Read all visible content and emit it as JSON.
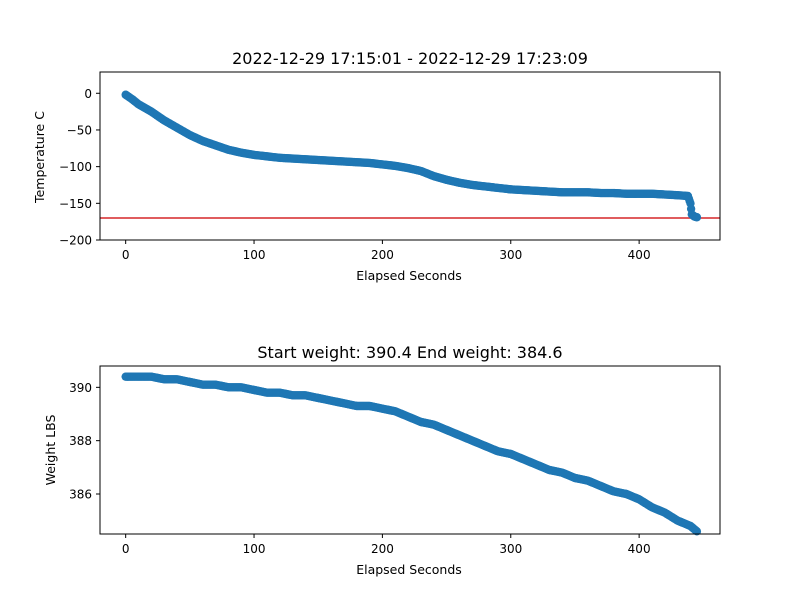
{
  "colors": {
    "marker": "#1f77b4",
    "threshold_line": "#d62728",
    "axis": "#000000",
    "background": "#ffffff"
  },
  "chart_data": [
    {
      "type": "scatter",
      "title": "2022-12-29 17:15:01 - 2022-12-29 17:23:09",
      "xlabel": "Elapsed Seconds",
      "ylabel": "Temperature C",
      "xlim": [
        -20,
        463
      ],
      "ylim": [
        -200,
        29
      ],
      "xticks": [
        0,
        100,
        200,
        300,
        400
      ],
      "xtick_labels": [
        "0",
        "100",
        "200",
        "300",
        "400"
      ],
      "yticks": [
        0,
        -50,
        -100,
        -150,
        -200
      ],
      "ytick_labels": [
        "0",
        "−50",
        "−100",
        "−150",
        "−200"
      ],
      "grid": false,
      "reference_line": {
        "axis": "y",
        "value": -170,
        "color": "#d62728"
      },
      "series": [
        {
          "x": [
            0,
            5,
            10,
            20,
            30,
            40,
            50,
            60,
            70,
            80,
            90,
            100,
            110,
            120,
            130,
            140,
            150,
            160,
            170,
            180,
            190,
            200,
            210,
            220,
            230,
            240,
            250,
            260,
            270,
            280,
            290,
            300,
            310,
            320,
            330,
            340,
            350,
            360,
            370,
            380,
            390,
            400,
            410,
            420,
            430,
            438,
            440,
            441,
            443,
            445
          ],
          "y": [
            -2,
            -8,
            -15,
            -25,
            -37,
            -47,
            -57,
            -65,
            -71,
            -77,
            -81,
            -84,
            -86,
            -88,
            -89,
            -90,
            -91,
            -92,
            -93,
            -94,
            -95,
            -97,
            -99,
            -102,
            -106,
            -113,
            -118,
            -122,
            -125,
            -127,
            -129,
            -131,
            -132,
            -133,
            -134,
            -135,
            -135,
            -135,
            -136,
            -136,
            -137,
            -137,
            -137,
            -138,
            -139,
            -140,
            -150,
            -165,
            -168,
            -169
          ]
        }
      ]
    },
    {
      "type": "scatter",
      "title": "Start weight: 390.4 End weight: 384.6",
      "xlabel": "Elapsed Seconds",
      "ylabel": "Weight LBS",
      "xlim": [
        -20,
        463
      ],
      "ylim": [
        384.5,
        390.8
      ],
      "xticks": [
        0,
        100,
        200,
        300,
        400
      ],
      "xtick_labels": [
        "0",
        "100",
        "200",
        "300",
        "400"
      ],
      "yticks": [
        386,
        388,
        390
      ],
      "ytick_labels": [
        "386",
        "388",
        "390"
      ],
      "grid": false,
      "series": [
        {
          "x": [
            0,
            10,
            20,
            30,
            40,
            50,
            60,
            70,
            80,
            90,
            100,
            110,
            120,
            130,
            140,
            150,
            160,
            170,
            180,
            190,
            200,
            210,
            220,
            230,
            240,
            250,
            260,
            270,
            280,
            290,
            300,
            310,
            320,
            330,
            340,
            350,
            360,
            370,
            380,
            390,
            400,
            410,
            420,
            430,
            440,
            445
          ],
          "y": [
            390.4,
            390.4,
            390.4,
            390.3,
            390.3,
            390.2,
            390.1,
            390.1,
            390.0,
            390.0,
            389.9,
            389.8,
            389.8,
            389.7,
            389.7,
            389.6,
            389.5,
            389.4,
            389.3,
            389.3,
            389.2,
            389.1,
            388.9,
            388.7,
            388.6,
            388.4,
            388.2,
            388.0,
            387.8,
            387.6,
            387.5,
            387.3,
            387.1,
            386.9,
            386.8,
            386.6,
            386.5,
            386.3,
            386.1,
            386.0,
            385.8,
            385.5,
            385.3,
            385.0,
            384.8,
            384.6
          ]
        }
      ]
    }
  ]
}
